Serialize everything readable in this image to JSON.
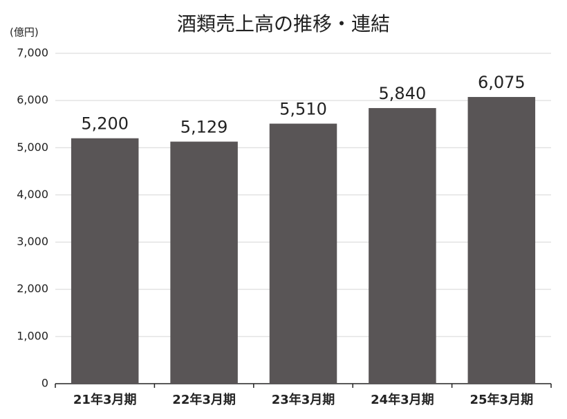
{
  "chart_data": {
    "type": "bar",
    "title": "酒類売上高の推移・連結",
    "y_label": "(億円)",
    "categories": [
      "21年3月期",
      "22年3月期",
      "23年3月期",
      "24年3月期",
      "25年3月期"
    ],
    "values": [
      5200,
      5129,
      5510,
      5840,
      6075
    ],
    "value_labels": [
      "5,200",
      "5,129",
      "5,510",
      "5,840",
      "6,075"
    ],
    "color": "#595556",
    "ylim": [
      0,
      7000
    ],
    "yticks": [
      0,
      {
        "value": 1000,
        "label": "1,000"
      },
      {
        "value": 2000,
        "label": "2,000"
      },
      {
        "value": 3000,
        "label": "3,000"
      },
      {
        "value": 4000,
        "label": "4,000"
      },
      {
        "value": 5000,
        "label": "5,000"
      },
      {
        "value": 6000,
        "label": "6,000"
      },
      {
        "value": 7000,
        "label": "7,000"
      }
    ],
    "grid": true
  }
}
